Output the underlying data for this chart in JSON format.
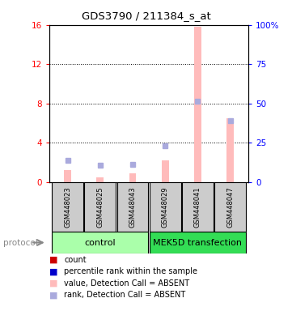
{
  "title": "GDS3790 / 211384_s_at",
  "samples": [
    "GSM448023",
    "GSM448025",
    "GSM448043",
    "GSM448029",
    "GSM448041",
    "GSM448047"
  ],
  "value_absent": [
    1.2,
    0.5,
    0.9,
    2.2,
    15.8,
    6.5
  ],
  "rank_absent": [
    2.2,
    1.7,
    1.8,
    3.7,
    8.2,
    6.2
  ],
  "left_ylim": [
    0,
    16
  ],
  "right_ylim": [
    0,
    100
  ],
  "left_yticks": [
    0,
    4,
    8,
    12,
    16
  ],
  "right_yticks": [
    0,
    25,
    50,
    75,
    100
  ],
  "right_yticklabels": [
    "0",
    "25",
    "50",
    "75",
    "100%"
  ],
  "bar_color_absent": "#ffbbbb",
  "rank_color_absent": "#aaaadd",
  "count_color": "#cc0000",
  "rank_color": "#0000cc",
  "x_positions": [
    0,
    1,
    2,
    3,
    4,
    5
  ],
  "bar_width": 0.22,
  "legend_labels": [
    "count",
    "percentile rank within the sample",
    "value, Detection Call = ABSENT",
    "rank, Detection Call = ABSENT"
  ],
  "legend_colors": [
    "#cc0000",
    "#0000cc",
    "#ffbbbb",
    "#aaaadd"
  ],
  "ctrl_color": "#aaffaa",
  "mek_color": "#33dd55",
  "sample_box_color": "#cccccc",
  "protocol_color": "#888888"
}
